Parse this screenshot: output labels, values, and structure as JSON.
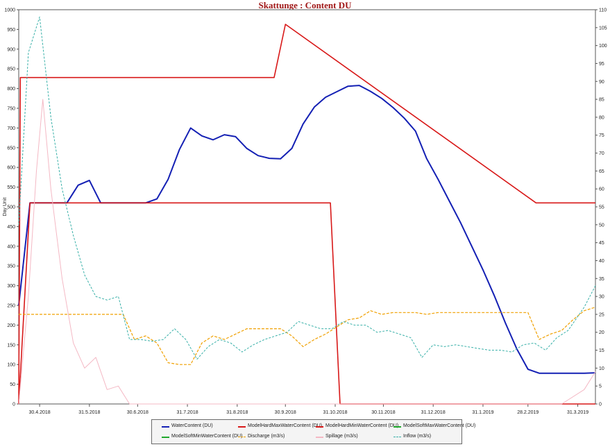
{
  "title": "Skattunge : Content DU",
  "chart_data": {
    "type": "line",
    "title": "Skattunge : Content DU",
    "ylabel": "Day Unit",
    "ylim": [
      0,
      1000
    ],
    "y2lim": [
      0,
      110
    ],
    "yticks": [
      0,
      50,
      100,
      150,
      200,
      250,
      300,
      350,
      400,
      450,
      500,
      550,
      600,
      650,
      700,
      750,
      800,
      850,
      900,
      950,
      1000
    ],
    "y2ticks": [
      0,
      5,
      10,
      15,
      20,
      25,
      30,
      35,
      40,
      45,
      50,
      55,
      60,
      65,
      70,
      75,
      80,
      85,
      90,
      95,
      100,
      105,
      110
    ],
    "x_range": [
      "2018-04-17",
      "2019-04-11"
    ],
    "x_ticks": [
      {
        "date": "2018-04-30",
        "label": "30.4.2018"
      },
      {
        "date": "2018-05-31",
        "label": "31.5.2018"
      },
      {
        "date": "2018-06-30",
        "label": "30.6.2018"
      },
      {
        "date": "2018-07-31",
        "label": "31.7.2018"
      },
      {
        "date": "2018-08-31",
        "label": "31.8.2018"
      },
      {
        "date": "2018-09-30",
        "label": "30.9.2018"
      },
      {
        "date": "2018-10-31",
        "label": "31.10.2018"
      },
      {
        "date": "2018-11-30",
        "label": "30.11.2018"
      },
      {
        "date": "2018-12-31",
        "label": "31.12.2018"
      },
      {
        "date": "2019-01-31",
        "label": "31.1.2019"
      },
      {
        "date": "2019-02-28",
        "label": "28.2.2019"
      },
      {
        "date": "2019-03-31",
        "label": "31.3.2019"
      }
    ],
    "grid": false,
    "legend_position": "bottom-center",
    "series": [
      {
        "name": "WaterContent (DU)",
        "axis": "left",
        "color": "#1420b4",
        "width": 2,
        "dash": "",
        "points": [
          [
            "2018-04-17",
            250
          ],
          [
            "2018-04-24",
            510
          ],
          [
            "2018-05-02",
            510
          ],
          [
            "2018-05-10",
            510
          ],
          [
            "2018-05-17",
            510
          ],
          [
            "2018-05-24",
            555
          ],
          [
            "2018-05-31",
            567
          ],
          [
            "2018-06-07",
            510
          ],
          [
            "2018-06-14",
            510
          ],
          [
            "2018-06-21",
            510
          ],
          [
            "2018-06-28",
            510
          ],
          [
            "2018-07-05",
            510
          ],
          [
            "2018-07-12",
            520
          ],
          [
            "2018-07-19",
            570
          ],
          [
            "2018-07-26",
            645
          ],
          [
            "2018-08-02",
            700
          ],
          [
            "2018-08-09",
            680
          ],
          [
            "2018-08-16",
            670
          ],
          [
            "2018-08-23",
            683
          ],
          [
            "2018-08-30",
            678
          ],
          [
            "2018-09-06",
            648
          ],
          [
            "2018-09-13",
            630
          ],
          [
            "2018-09-20",
            623
          ],
          [
            "2018-09-27",
            622
          ],
          [
            "2018-10-04",
            648
          ],
          [
            "2018-10-11",
            710
          ],
          [
            "2018-10-18",
            753
          ],
          [
            "2018-10-25",
            778
          ],
          [
            "2018-11-01",
            792
          ],
          [
            "2018-11-08",
            806
          ],
          [
            "2018-11-15",
            808
          ],
          [
            "2018-11-22",
            793
          ],
          [
            "2018-11-29",
            775
          ],
          [
            "2018-12-06",
            752
          ],
          [
            "2018-12-13",
            725
          ],
          [
            "2018-12-20",
            692
          ],
          [
            "2018-12-27",
            622
          ],
          [
            "2019-01-03",
            570
          ],
          [
            "2019-01-10",
            515
          ],
          [
            "2019-01-17",
            460
          ],
          [
            "2019-01-24",
            400
          ],
          [
            "2019-01-31",
            340
          ],
          [
            "2019-02-07",
            275
          ],
          [
            "2019-02-14",
            205
          ],
          [
            "2019-02-21",
            140
          ],
          [
            "2019-02-28",
            88
          ],
          [
            "2019-03-07",
            78
          ],
          [
            "2019-03-14",
            78
          ],
          [
            "2019-03-21",
            78
          ],
          [
            "2019-03-28",
            78
          ],
          [
            "2019-04-04",
            78
          ],
          [
            "2019-04-11",
            79
          ]
        ]
      },
      {
        "name": "ModelHardMaxWaterContent (DU)",
        "axis": "left",
        "color": "#d81818",
        "width": 1.6,
        "dash": "",
        "points": [
          [
            "2018-04-17",
            0
          ],
          [
            "2018-04-18",
            828
          ],
          [
            "2018-09-23",
            828
          ],
          [
            "2018-09-30",
            963
          ],
          [
            "2019-03-05",
            510
          ],
          [
            "2019-04-11",
            510
          ]
        ]
      },
      {
        "name": "ModelHardMinWaterContent (DU)",
        "axis": "left",
        "color": "#d81818",
        "width": 1.6,
        "dash": "",
        "points": [
          [
            "2018-04-17",
            0
          ],
          [
            "2018-04-24",
            510
          ],
          [
            "2018-10-28",
            510
          ],
          [
            "2018-11-03",
            0
          ],
          [
            "2019-04-11",
            0
          ]
        ]
      },
      {
        "name": "ModelSoftMaxWaterContent (DU)",
        "axis": "left",
        "color": "#1fa82c",
        "width": 1,
        "dash": "",
        "points": []
      },
      {
        "name": "ModelSoftMinWaterContent (DU)",
        "axis": "left",
        "color": "#1fa82c",
        "width": 1,
        "dash": "",
        "points": []
      },
      {
        "name": "Discharge (m3/s)",
        "axis": "right",
        "color": "#f0a000",
        "width": 1.2,
        "dash": "4,2",
        "points": [
          [
            "2018-04-17",
            25
          ],
          [
            "2018-05-10",
            25
          ],
          [
            "2018-06-21",
            25
          ],
          [
            "2018-06-28",
            18
          ],
          [
            "2018-07-05",
            19
          ],
          [
            "2018-07-12",
            17
          ],
          [
            "2018-07-19",
            11.5
          ],
          [
            "2018-07-26",
            11
          ],
          [
            "2018-08-02",
            11
          ],
          [
            "2018-08-09",
            17
          ],
          [
            "2018-08-16",
            19
          ],
          [
            "2018-08-23",
            18
          ],
          [
            "2018-08-30",
            19.5
          ],
          [
            "2018-09-06",
            21
          ],
          [
            "2018-09-13",
            21
          ],
          [
            "2018-09-20",
            21
          ],
          [
            "2018-09-27",
            21
          ],
          [
            "2018-10-04",
            19
          ],
          [
            "2018-10-11",
            16
          ],
          [
            "2018-10-18",
            18
          ],
          [
            "2018-10-25",
            19.5
          ],
          [
            "2018-11-01",
            21.5
          ],
          [
            "2018-11-08",
            23.5
          ],
          [
            "2018-11-15",
            24
          ],
          [
            "2018-11-22",
            26
          ],
          [
            "2018-11-29",
            25
          ],
          [
            "2018-12-06",
            25.5
          ],
          [
            "2018-12-13",
            25.5
          ],
          [
            "2018-12-20",
            25.5
          ],
          [
            "2018-12-27",
            25
          ],
          [
            "2019-01-03",
            25.5
          ],
          [
            "2019-01-10",
            25.5
          ],
          [
            "2019-01-17",
            25.5
          ],
          [
            "2019-01-24",
            25.5
          ],
          [
            "2019-01-31",
            25.5
          ],
          [
            "2019-02-07",
            25.5
          ],
          [
            "2019-02-14",
            25.5
          ],
          [
            "2019-02-21",
            25.5
          ],
          [
            "2019-02-28",
            25.5
          ],
          [
            "2019-03-07",
            18
          ],
          [
            "2019-03-14",
            19.5
          ],
          [
            "2019-03-21",
            20.5
          ],
          [
            "2019-03-28",
            23.5
          ],
          [
            "2019-04-04",
            26
          ],
          [
            "2019-04-11",
            27
          ]
        ]
      },
      {
        "name": "Spillage (m3/s)",
        "axis": "right",
        "color": "#f4b8c4",
        "width": 1,
        "dash": "",
        "points": [
          [
            "2018-04-17",
            0
          ],
          [
            "2018-04-23",
            30
          ],
          [
            "2018-04-28",
            65
          ],
          [
            "2018-05-02",
            85
          ],
          [
            "2018-05-07",
            60
          ],
          [
            "2018-05-14",
            35
          ],
          [
            "2018-05-21",
            17
          ],
          [
            "2018-05-28",
            10
          ],
          [
            "2018-06-04",
            13
          ],
          [
            "2018-06-11",
            4
          ],
          [
            "2018-06-18",
            5
          ],
          [
            "2018-06-25",
            0
          ],
          [
            "2019-03-21",
            0
          ],
          [
            "2019-04-04",
            4
          ],
          [
            "2019-04-11",
            9
          ]
        ]
      },
      {
        "name": "Inflow (m3/s)",
        "axis": "right",
        "color": "#38b0a8",
        "width": 1,
        "dash": "3,2",
        "points": [
          [
            "2018-04-17",
            50
          ],
          [
            "2018-04-23",
            98
          ],
          [
            "2018-04-30",
            108
          ],
          [
            "2018-05-07",
            80
          ],
          [
            "2018-05-14",
            60
          ],
          [
            "2018-05-21",
            47
          ],
          [
            "2018-05-28",
            36
          ],
          [
            "2018-06-04",
            30
          ],
          [
            "2018-06-11",
            29
          ],
          [
            "2018-06-18",
            30
          ],
          [
            "2018-06-25",
            18
          ],
          [
            "2018-07-02",
            18
          ],
          [
            "2018-07-09",
            17.5
          ],
          [
            "2018-07-16",
            18
          ],
          [
            "2018-07-23",
            21
          ],
          [
            "2018-07-30",
            18
          ],
          [
            "2018-08-06",
            12.5
          ],
          [
            "2018-08-13",
            16
          ],
          [
            "2018-08-20",
            18
          ],
          [
            "2018-08-27",
            17
          ],
          [
            "2018-09-03",
            14.5
          ],
          [
            "2018-09-10",
            16.5
          ],
          [
            "2018-09-17",
            18
          ],
          [
            "2018-09-24",
            19
          ],
          [
            "2018-10-01",
            20
          ],
          [
            "2018-10-08",
            23
          ],
          [
            "2018-10-15",
            22
          ],
          [
            "2018-10-22",
            21
          ],
          [
            "2018-10-29",
            21
          ],
          [
            "2018-11-05",
            23
          ],
          [
            "2018-11-12",
            22
          ],
          [
            "2018-11-19",
            22
          ],
          [
            "2018-11-26",
            20
          ],
          [
            "2018-12-03",
            20.5
          ],
          [
            "2018-12-10",
            19.5
          ],
          [
            "2018-12-17",
            18.5
          ],
          [
            "2018-12-24",
            13
          ],
          [
            "2018-12-31",
            16.5
          ],
          [
            "2019-01-07",
            16
          ],
          [
            "2019-01-14",
            16.5
          ],
          [
            "2019-01-21",
            16
          ],
          [
            "2019-01-28",
            15.5
          ],
          [
            "2019-02-04",
            15
          ],
          [
            "2019-02-11",
            15
          ],
          [
            "2019-02-18",
            14.5
          ],
          [
            "2019-02-25",
            16.5
          ],
          [
            "2019-03-04",
            17
          ],
          [
            "2019-03-11",
            15
          ],
          [
            "2019-03-18",
            18.5
          ],
          [
            "2019-03-25",
            20.5
          ],
          [
            "2019-04-04",
            27
          ],
          [
            "2019-04-11",
            33
          ]
        ]
      }
    ]
  }
}
